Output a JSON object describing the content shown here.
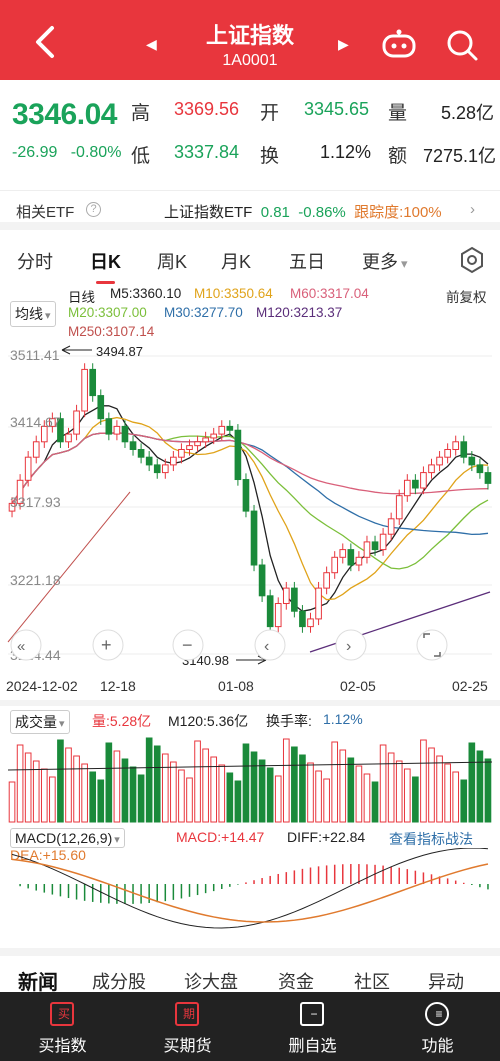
{
  "header": {
    "title": "上证指数",
    "code": "1A0001",
    "prev_arrow": "◀",
    "next_arrow": "▶"
  },
  "quote": {
    "price": "3346.04",
    "change": "-26.99",
    "change_pct": "-0.80%",
    "high_label": "高",
    "high": "3369.56",
    "open_label": "开",
    "open": "3345.65",
    "volume_label": "量",
    "volume": "5.28亿",
    "low_label": "低",
    "low": "3337.84",
    "turnover_label": "换",
    "turnover": "1.12%",
    "amount_label": "额",
    "amount": "7275.1亿"
  },
  "etf": {
    "label": "相关ETF",
    "help": "?",
    "name": "上证指数ETF",
    "price": "0.81",
    "pct": "-0.86%",
    "tracking": "跟踪度:100%",
    "arrow": "›"
  },
  "tabs": [
    "分时",
    "日K",
    "周K",
    "月K",
    "五日",
    "更多"
  ],
  "more_caret": "▾",
  "ma": {
    "selector": "均线",
    "selector_caret": "▾",
    "daily": "日线",
    "adjust": "前复权",
    "m5": "M5:3360.10",
    "m10": "M10:3350.64",
    "m60": "M60:3317.04",
    "m20": "M20:3307.00",
    "m30": "M30:3277.70",
    "m120": "M120:3213.37",
    "m250": "M250:3107.14",
    "colors": {
      "m5": "#222222",
      "m10": "#e0a31a",
      "m60": "#d9607a",
      "m20": "#7bbf3a",
      "m30": "#2f6fa8",
      "m120": "#5b2e7a",
      "m250": "#c0504d"
    }
  },
  "price_axis": [
    "3511.41",
    "3414.67",
    "3317.93",
    "3221.18",
    "3124.44"
  ],
  "annotations": {
    "high_mark": "3494.87",
    "low_mark": "3140.98"
  },
  "x_axis": [
    "2024-12-02",
    "12-18",
    "01-08",
    "02-05",
    "02-25"
  ],
  "volume": {
    "selector": "成交量",
    "selector_caret": "▾",
    "vol": "量:5.28亿",
    "m120": "M120:5.36亿",
    "turnover_label": "换手率:",
    "turnover": "1.12%"
  },
  "macd": {
    "selector": "MACD(12,26,9)",
    "selector_caret": "▾",
    "macd": "MACD:+14.47",
    "diff": "DIFF:+22.84",
    "dea": "DEA:+15.60",
    "link": "查看指标战法"
  },
  "news_tabs": [
    "新闻",
    "成分股",
    "诊大盘",
    "资金",
    "社区",
    "异动"
  ],
  "bottom": [
    {
      "label": "买指数",
      "icon_text": "买"
    },
    {
      "label": "买期货",
      "icon_text": "期"
    },
    {
      "label": "删自选",
      "icon_text": "−"
    },
    {
      "label": "功能",
      "icon_text": "≡"
    }
  ],
  "chart_data": {
    "type": "candlestick",
    "y_range": [
      3124.44,
      3511.41
    ],
    "candles_close_approx": [
      3320,
      3350,
      3380,
      3400,
      3420,
      3430,
      3400,
      3410,
      3440,
      3494,
      3460,
      3430,
      3410,
      3420,
      3400,
      3390,
      3380,
      3370,
      3360,
      3370,
      3380,
      3390,
      3395,
      3400,
      3405,
      3410,
      3420,
      3415,
      3351,
      3310,
      3240,
      3200,
      3160,
      3190,
      3210,
      3180,
      3160,
      3170,
      3210,
      3230,
      3250,
      3260,
      3240,
      3250,
      3270,
      3260,
      3280,
      3300,
      3330,
      3350,
      3340,
      3360,
      3370,
      3380,
      3390,
      3400,
      3380,
      3370,
      3360,
      3346
    ]
  }
}
